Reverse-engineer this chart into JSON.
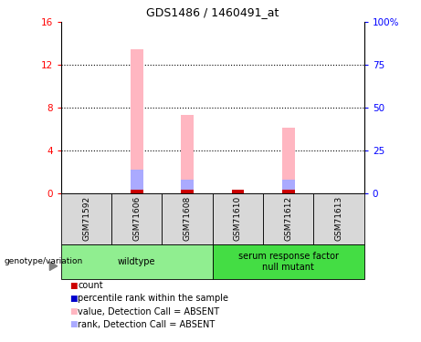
{
  "title": "GDS1486 / 1460491_at",
  "samples": [
    "GSM71592",
    "GSM71606",
    "GSM71608",
    "GSM71610",
    "GSM71612",
    "GSM71613"
  ],
  "pink_values": [
    0.0,
    13.5,
    7.3,
    0.35,
    6.1,
    0.0
  ],
  "blue_rank_values": [
    0.0,
    14.0,
    8.0,
    0.0,
    8.0,
    0.0
  ],
  "red_count_values": [
    0.0,
    0.3,
    0.3,
    0.3,
    0.3,
    0.0
  ],
  "ylim_left": [
    0,
    16
  ],
  "ylim_right": [
    0,
    100
  ],
  "yticks_left": [
    0,
    4,
    8,
    12,
    16
  ],
  "ytick_labels_left": [
    "0",
    "4",
    "8",
    "12",
    "16"
  ],
  "yticks_right": [
    0,
    25,
    50,
    75,
    100
  ],
  "ytick_labels_right": [
    "0",
    "25",
    "50",
    "75",
    "100%"
  ],
  "pink_color": "#ffb6c1",
  "blue_color": "#aaaaff",
  "red_color": "#cc0000",
  "dark_blue_color": "#0000cc",
  "bg_color": "#d8d8d8",
  "wildtype_color": "#90ee90",
  "mutant_color": "#44dd44",
  "legend_items": [
    {
      "label": "count",
      "color": "#cc0000"
    },
    {
      "label": "percentile rank within the sample",
      "color": "#0000cc"
    },
    {
      "label": "value, Detection Call = ABSENT",
      "color": "#ffb6c1"
    },
    {
      "label": "rank, Detection Call = ABSENT",
      "color": "#aaaaff"
    }
  ],
  "group_specs": [
    {
      "start": 0,
      "end": 3,
      "label": "wildtype",
      "color": "#90ee90"
    },
    {
      "start": 3,
      "end": 6,
      "label": "serum response factor\nnull mutant",
      "color": "#44dd44"
    }
  ]
}
